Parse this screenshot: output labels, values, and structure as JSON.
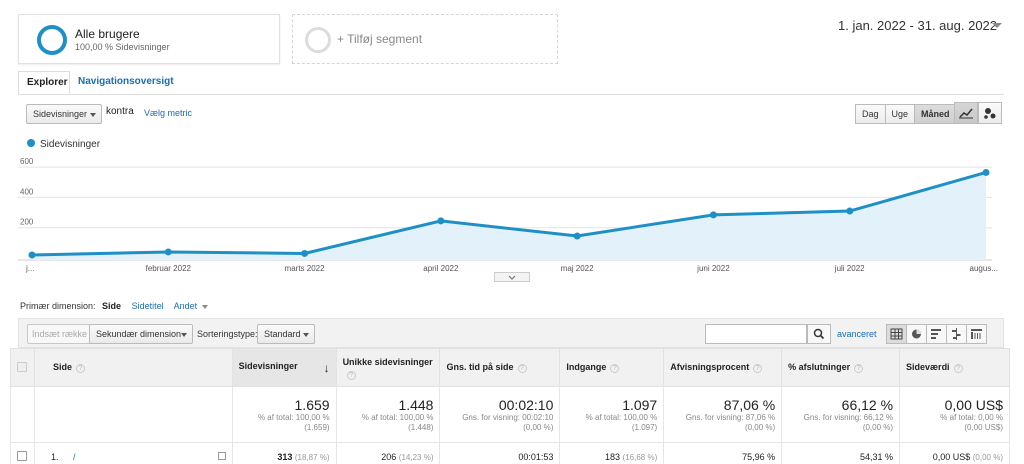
{
  "segment": {
    "name": "Alle brugere",
    "sub": "100,00 % Sidevisninger",
    "add_label": "+ Tilføj segment",
    "color": "#1e90c6"
  },
  "date_range": "1. jan. 2022 - 31. aug. 2022",
  "tabs": [
    {
      "label": "Explorer"
    },
    {
      "label": "Navigationsoversigt"
    }
  ],
  "metric": {
    "selected": "Sidevisninger",
    "vs_label": "kontra",
    "pick_label": "Vælg metric"
  },
  "period_buttons": [
    "Dag",
    "Uge",
    "Måned"
  ],
  "period_selected": "Måned",
  "chart_data": {
    "type": "area",
    "x": [
      "j...",
      "februar 2022",
      "marts 2022",
      "april 2022",
      "maj 2022",
      "juni 2022",
      "juli 2022",
      "augus..."
    ],
    "series": [
      {
        "name": "Sidevisninger",
        "values": [
          20,
          40,
          30,
          245,
          145,
          285,
          310,
          565
        ],
        "color": "#1e90c6"
      }
    ],
    "ylim": [
      0,
      700
    ],
    "yticks": [
      200,
      400,
      600
    ],
    "grid": true,
    "legend": "top-left"
  },
  "dimensions": {
    "label": "Primær dimension:",
    "items": [
      "Side",
      "Sidetitel",
      "Andet"
    ]
  },
  "toolbar": {
    "insert_rows": "Indsæt række",
    "secondary_dimension": "Sekundær dimension",
    "sort_label": "Sorteringstype:",
    "sort_value": "Standard",
    "advanced": "avanceret"
  },
  "table": {
    "columns": [
      {
        "label": "Side"
      },
      {
        "label": "Sidevisninger"
      },
      {
        "label": "Unikke sidevisninger"
      },
      {
        "label": "Gns. tid på side"
      },
      {
        "label": "Indgange"
      },
      {
        "label": "Afvisningsprocent"
      },
      {
        "label": "% afslutninger"
      },
      {
        "label": "Sideværdi"
      }
    ],
    "totals": [
      {
        "big": "1.659",
        "small1": "% af total: 100,00 %",
        "small2": "(1.659)"
      },
      {
        "big": "1.448",
        "small1": "% af total: 100,00 %",
        "small2": "(1.448)"
      },
      {
        "big": "00:02:10",
        "small1": "Gns. for visning: 00:02:10",
        "small2": "(0,00 %)"
      },
      {
        "big": "1.097",
        "small1": "% af total: 100,00 %",
        "small2": "(1.097)"
      },
      {
        "big": "87,06 %",
        "small1": "Gns. for visning: 87,06 %",
        "small2": "(0,00 %)"
      },
      {
        "big": "66,12 %",
        "small1": "Gns. for visning: 66,12 %",
        "small2": "(0,00 %)"
      },
      {
        "big": "0,00 US$",
        "small1": "% af total: 0,00 %",
        "small2": "(0,00 US$)"
      }
    ],
    "rows": [
      {
        "index": "1.",
        "page": "/",
        "pageviews": "313",
        "pageviews_pct": "(18,87 %)",
        "unique": "206",
        "unique_pct": "(14,23 %)",
        "avg_time": "00:01:53",
        "entrances": "183",
        "entrances_pct": "(16,68 %)",
        "bounce": "75,96 %",
        "exit": "54,31 %",
        "value": "0,00 US$",
        "value_pct": "(0,00 %)"
      }
    ]
  }
}
